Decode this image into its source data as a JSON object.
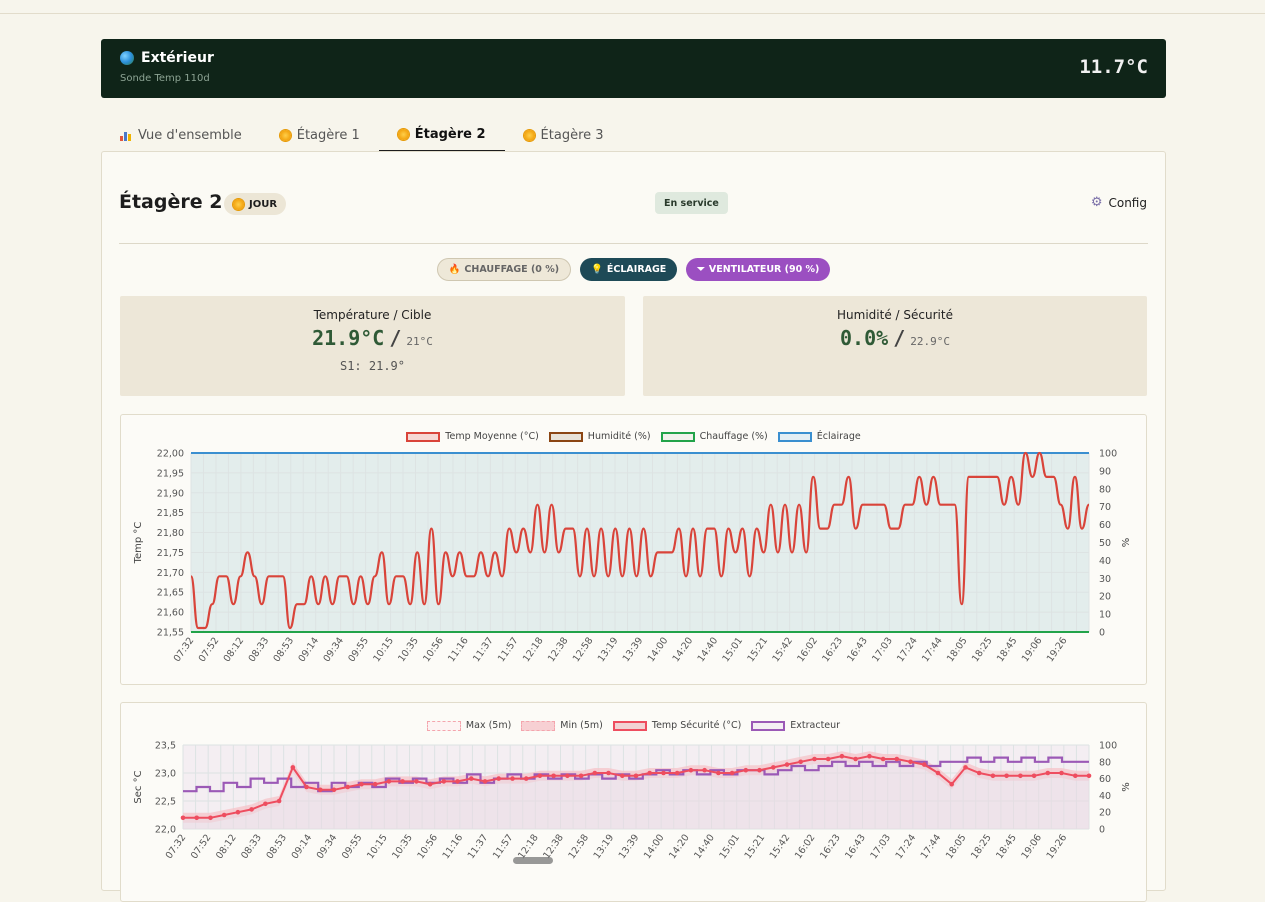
{
  "exterior": {
    "title": "Extérieur",
    "sensor": "Sonde Temp 110d",
    "temp": "11.7°C"
  },
  "tabs": [
    {
      "label": "Vue d'ensemble",
      "icon": "bar-chart-icon"
    },
    {
      "label": "Étagère 1",
      "icon": "sun-icon"
    },
    {
      "label": "Étagère 2",
      "icon": "sun-icon",
      "active": true
    },
    {
      "label": "Étagère 3",
      "icon": "sun-icon"
    }
  ],
  "shelf": {
    "title": "Étagère 2",
    "mode_badge": "JOUR",
    "status": "En service",
    "config_label": "Config"
  },
  "actuators": {
    "heating": "CHAUFFAGE (0 %)",
    "lighting": "ÉCLAIRAGE",
    "fan": "VENTILATEUR (90 %)"
  },
  "metrics": {
    "temp": {
      "label": "Température / Cible",
      "value": "21.9°C",
      "sep": "/",
      "target": "21°C",
      "sub": "S1: 21.9°"
    },
    "humidity": {
      "label": "Humidité / Sécurité",
      "value": "0.0%",
      "sep": "/",
      "target": "22.9°C"
    }
  },
  "colors": {
    "temp": "#d9443a",
    "humidity": "#8b4513",
    "heating": "#22a34a",
    "lighting": "#3a8fd0",
    "safety": "#ee4d5f",
    "extractor": "#9b59b6"
  },
  "chart_data": [
    {
      "type": "line",
      "legend": [
        "Temp Moyenne (°C)",
        "Humidité (%)",
        "Chauffage (%)",
        "Éclairage"
      ],
      "ylabel": "Temp °C",
      "y2label": "%",
      "ylim": [
        21.55,
        22.0
      ],
      "y2lim": [
        0,
        100
      ],
      "yticks": [
        "22,00",
        "21,95",
        "21,90",
        "21,85",
        "21,80",
        "21,75",
        "21,70",
        "21,65",
        "21,60",
        "21,55"
      ],
      "y2ticks": [
        "100",
        "90",
        "80",
        "70",
        "60",
        "50",
        "40",
        "30",
        "20",
        "10",
        "0"
      ],
      "xticks": [
        "07:32",
        "07:52",
        "08:12",
        "08:33",
        "08:53",
        "09:14",
        "09:34",
        "09:55",
        "10:15",
        "10:35",
        "10:56",
        "11:16",
        "11:37",
        "11:57",
        "12:18",
        "12:38",
        "12:58",
        "13:19",
        "13:39",
        "14:00",
        "14:20",
        "14:40",
        "15:01",
        "15:21",
        "15:42",
        "16:02",
        "16:23",
        "16:43",
        "17:03",
        "17:24",
        "17:44",
        "18:05",
        "18:25",
        "18:45",
        "19:06",
        "19:26"
      ],
      "series": [
        {
          "name": "Temp Moyenne (°C)",
          "values": [
            21.69,
            21.56,
            21.56,
            21.62,
            21.69,
            21.69,
            21.62,
            21.69,
            21.75,
            21.69,
            21.62,
            21.69,
            21.69,
            21.69,
            21.56,
            21.62,
            21.62,
            21.69,
            21.62,
            21.69,
            21.62,
            21.69,
            21.69,
            21.62,
            21.69,
            21.62,
            21.69,
            21.75,
            21.62,
            21.69,
            21.69,
            21.62,
            21.75,
            21.62,
            21.81,
            21.62,
            21.75,
            21.69,
            21.75,
            21.69,
            21.69,
            21.75,
            21.69,
            21.75,
            21.69,
            21.81,
            21.75,
            21.81,
            21.75,
            21.87,
            21.75,
            21.87,
            21.75,
            21.81,
            21.81,
            21.69,
            21.81,
            21.69,
            21.81,
            21.69,
            21.81,
            21.69,
            21.81,
            21.69,
            21.81,
            21.69,
            21.75,
            21.75,
            21.75,
            21.81,
            21.69,
            21.81,
            21.69,
            21.81,
            21.81,
            21.69,
            21.81,
            21.75,
            21.81,
            21.69,
            21.81,
            21.75,
            21.87,
            21.75,
            21.87,
            21.75,
            21.87,
            21.75,
            21.94,
            21.81,
            21.81,
            21.87,
            21.87,
            21.94,
            21.81,
            21.87,
            21.87,
            21.87,
            21.87,
            21.81,
            21.81,
            21.87,
            21.87,
            21.94,
            21.87,
            21.94,
            21.87,
            21.87,
            21.87,
            21.62,
            21.94,
            21.94,
            21.94,
            21.94,
            21.94,
            21.87,
            21.94,
            21.87,
            22.0,
            21.94,
            22.0,
            21.94,
            21.94,
            21.87,
            21.81,
            21.94,
            21.81,
            21.87
          ]
        },
        {
          "name": "Chauffage (%)",
          "values": [
            0
          ]
        },
        {
          "name": "Éclairage",
          "values": [
            100
          ]
        }
      ]
    },
    {
      "type": "line",
      "legend": [
        "Max (5m)",
        "Min (5m)",
        "Temp Sécurité (°C)",
        "Extracteur"
      ],
      "ylabel": "Sec °C",
      "y2label": "%",
      "ylim": [
        22.0,
        23.5
      ],
      "y2lim": [
        0,
        100
      ],
      "yticks": [
        "23,5",
        "23,0",
        "22,5",
        "22,0"
      ],
      "y2ticks": [
        "100",
        "80",
        "60",
        "40",
        "20",
        "0"
      ],
      "xticks": [
        "07:32",
        "07:52",
        "08:12",
        "08:33",
        "08:53",
        "09:14",
        "09:34",
        "09:55",
        "10:15",
        "10:35",
        "10:56",
        "11:16",
        "11:37",
        "11:57",
        "12:18",
        "12:38",
        "12:58",
        "13:19",
        "13:39",
        "14:00",
        "14:20",
        "14:40",
        "15:01",
        "15:21",
        "15:42",
        "16:02",
        "16:23",
        "16:43",
        "17:03",
        "17:24",
        "17:44",
        "18:05",
        "18:25",
        "18:45",
        "19:06",
        "19:26"
      ],
      "series": [
        {
          "name": "Temp Sécurité (°C)",
          "values": [
            22.2,
            22.2,
            22.2,
            22.25,
            22.3,
            22.35,
            22.45,
            22.5,
            23.1,
            22.75,
            22.7,
            22.7,
            22.75,
            22.8,
            22.8,
            22.85,
            22.85,
            22.85,
            22.8,
            22.85,
            22.85,
            22.9,
            22.85,
            22.9,
            22.9,
            22.9,
            22.95,
            22.95,
            22.95,
            22.95,
            23.0,
            23.0,
            22.95,
            22.95,
            23.0,
            23.0,
            23.0,
            23.05,
            23.05,
            23.0,
            23.0,
            23.05,
            23.05,
            23.1,
            23.15,
            23.2,
            23.25,
            23.25,
            23.3,
            23.25,
            23.3,
            23.25,
            23.25,
            23.2,
            23.15,
            23.0,
            22.8,
            23.1,
            23.0,
            22.95,
            22.95,
            22.95,
            22.95,
            23.0,
            23.0,
            22.95,
            22.95
          ]
        },
        {
          "name": "Extracteur",
          "values": [
            45,
            50,
            45,
            55,
            50,
            60,
            55,
            60,
            50,
            55,
            45,
            55,
            50,
            55,
            50,
            60,
            55,
            60,
            55,
            60,
            55,
            65,
            55,
            60,
            65,
            60,
            65,
            60,
            65,
            60,
            65,
            60,
            65,
            60,
            65,
            70,
            65,
            70,
            65,
            70,
            65,
            70,
            70,
            65,
            70,
            75,
            70,
            75,
            80,
            75,
            80,
            75,
            80,
            75,
            80,
            75,
            80,
            80,
            85,
            80,
            85,
            80,
            85,
            80,
            85,
            80,
            80
          ]
        }
      ]
    }
  ]
}
